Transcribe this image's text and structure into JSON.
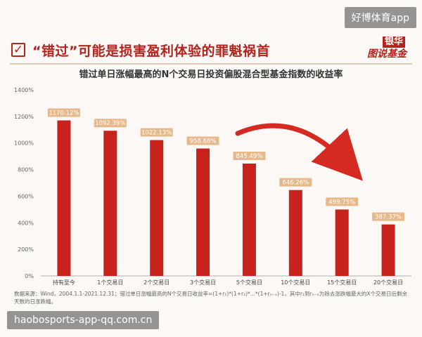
{
  "watermark_top": "好博体育app",
  "watermark_bottom": "haobosports-app-qq.com.cn",
  "headline": "“错过”可能是损害盈利体验的罪魁祸首",
  "logo": {
    "line1": "银华",
    "line2": "图说基金"
  },
  "source_note": "数据来源：Wind，2004.1.1-2021.12.31；错过单日涨幅最高的N个交易日收益率=(1+r₁)*(1+r₂)*...*(1+rₙ₋ₓ)-1，其中r₁到rₙ₋ₓ为除去涨跌幅最大的X个交易日后剩余天数的日涨跌幅。",
  "colors": {
    "bar": "#c8221d",
    "label_bg": "#e7b98a",
    "arrow": "#d42a22",
    "accent": "#b3241e"
  },
  "chart_data": {
    "type": "bar",
    "title": "错过单日涨幅最高的N个交易日投资偏股混合型基金指数的收益率",
    "categories": [
      "持有至今",
      "1个交易日",
      "2个交易日",
      "3个交易日",
      "5个交易日",
      "10个交易日",
      "15个交易日",
      "20个交易日"
    ],
    "values": [
      1170.12,
      1092.39,
      1022.13,
      958.68,
      845.49,
      646.26,
      499.75,
      387.37
    ],
    "data_labels": [
      "1170.12%",
      "1092.39%",
      "1022.13%",
      "958.68%",
      "845.49%",
      "646.26%",
      "499.75%",
      "387.37%"
    ],
    "y_ticks": [
      "0%",
      "200%",
      "400%",
      "600%",
      "800%",
      "1000%",
      "1200%",
      "1400%"
    ],
    "ylim": [
      0,
      1400
    ],
    "grid": false,
    "legend": "none"
  }
}
